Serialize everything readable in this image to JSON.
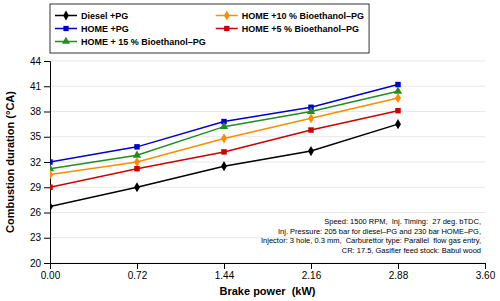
{
  "chart_data": {
    "type": "line",
    "x": [
      0,
      0.72,
      1.44,
      2.16,
      2.88
    ],
    "series": [
      {
        "name": "Diesel +PG",
        "color": "#000000",
        "marker": "diamond",
        "line_style": "solid",
        "values": [
          26.7,
          29.0,
          31.5,
          33.3,
          36.5
        ]
      },
      {
        "name": "HOME +PG",
        "color": "#0000CC",
        "marker": "square",
        "line_style": "solid",
        "values": [
          32.0,
          33.8,
          36.8,
          38.5,
          41.2
        ]
      },
      {
        "name": "HOME + 15 % Bioethanol–PG",
        "color": "#228B22",
        "marker": "triangle",
        "line_style": "solid",
        "values": [
          31.2,
          32.8,
          36.2,
          38.0,
          40.4
        ]
      },
      {
        "name": "HOME +10 % Bioethanol–PG",
        "color": "#FF8C00",
        "marker": "diamond",
        "line_style": "solid",
        "values": [
          30.5,
          32.0,
          34.8,
          37.2,
          39.6
        ]
      },
      {
        "name": "HOME +5 % Bioethanol–PG",
        "color": "#CC0000",
        "marker": "square",
        "line_style": "solid",
        "values": [
          29.0,
          31.2,
          33.2,
          35.8,
          38.1
        ]
      }
    ],
    "xlabel": "Brake power  (kW)",
    "ylabel": "Combustion duration (°CA)",
    "xlim": [
      0,
      3.6
    ],
    "ylim": [
      20,
      44
    ],
    "xticks": [
      {
        "value": 0,
        "label": "0.00"
      },
      0.72,
      1.44,
      2.16,
      2.88,
      {
        "value": 3.6,
        "label": "3.60"
      }
    ],
    "yticks": [
      20,
      23,
      26,
      29,
      32,
      35,
      38,
      41,
      44
    ],
    "annotation": "Speed: 1500 RPM,  Inj. Timing:  27 deg. bTDC,\nInj. Pressure: 205 bar for diesel–PG and 230 bar HOME–PG,\nInjector: 3 hole, 0.3 mm,  Carburettor type: Parallel  flow gas entry,\nCR: 17.5, Gasifier feed stock: Babul wood",
    "grid": true,
    "legend": "upper left"
  }
}
